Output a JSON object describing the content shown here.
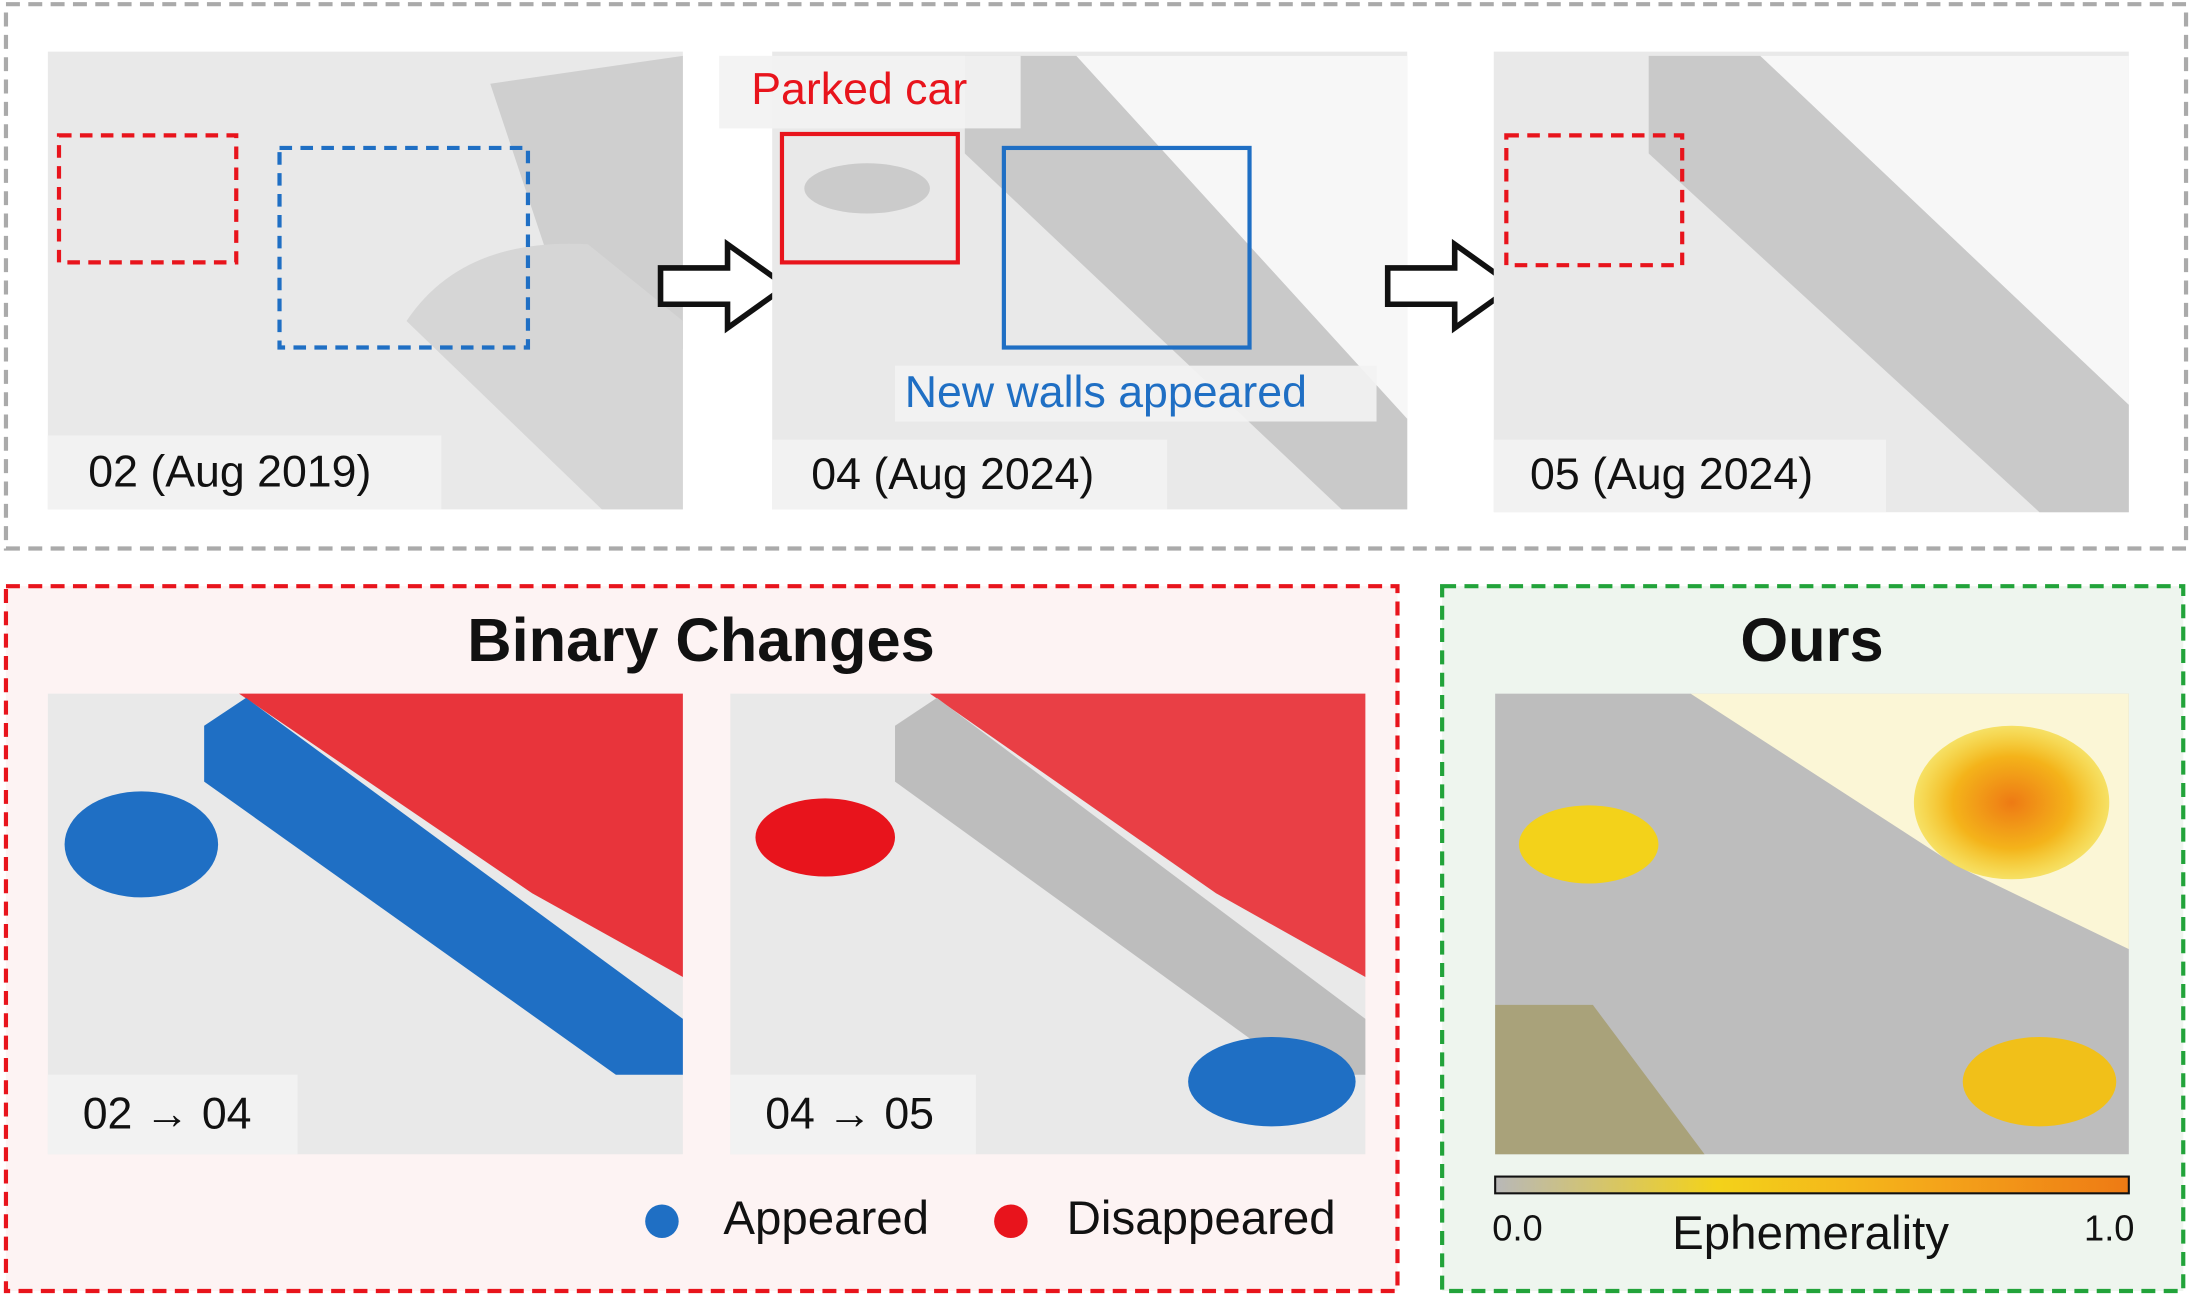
{
  "top_row": {
    "panels": [
      {
        "label": "02 (Aug 2019)"
      },
      {
        "label": "04 (Aug 2024)"
      },
      {
        "label": "05 (Aug 2024)"
      }
    ],
    "annotations": {
      "parked_car": "Parked car",
      "new_walls": "New walls appeared"
    }
  },
  "binary_changes": {
    "title": "Binary Changes",
    "panels": [
      {
        "label": "02 → 04"
      },
      {
        "label": "04 → 05"
      }
    ],
    "legend": [
      {
        "name": "Appeared",
        "color": "#1f6fc4"
      },
      {
        "name": "Disappeared",
        "color": "#e8141c"
      }
    ]
  },
  "ours": {
    "title": "Ours",
    "colorbar": {
      "min_label": "0.0",
      "label": "Ephemerality",
      "max_label": "1.0"
    }
  }
}
